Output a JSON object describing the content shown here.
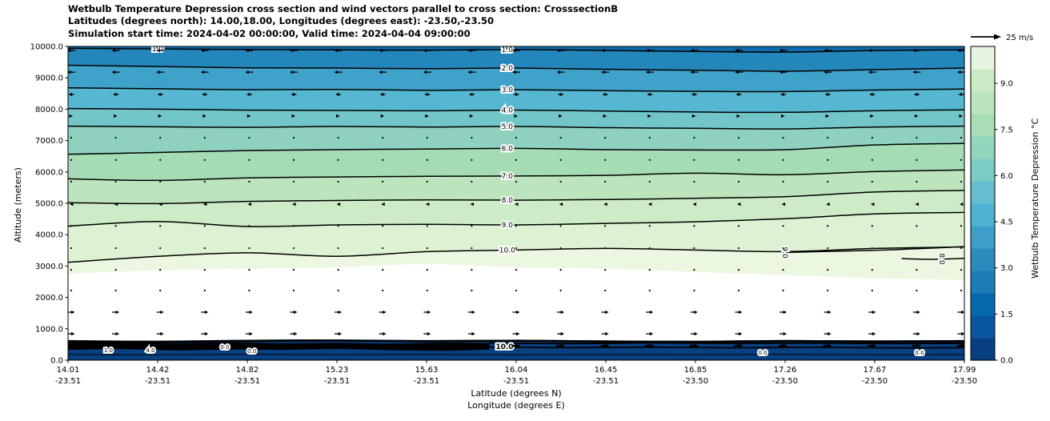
{
  "figure": {
    "title_line1": "Wetbulb Temperature Depression cross section and wind vectors parallel to cross section: CrosssectionB",
    "title_line2": "Latitudes (degrees north): 14.00,18.00, Longitudes (degrees east): -23.50,-23.50",
    "title_line3": "Simulation start time: 2024-04-02 00:00:00, Valid time: 2024-04-04 09:00:00"
  },
  "chart_data": {
    "type": "heatmap",
    "variant": "filled-contour vertical cross section with wind vectors (quiver)",
    "title": "Wetbulb Temperature Depression cross section and wind vectors parallel to cross section: CrosssectionB",
    "xlabel_line1": "Latitude (degrees N)",
    "xlabel_line2": "Longitude (degrees E)",
    "ylabel": "Altitude (meters)",
    "ylim": [
      0,
      10000
    ],
    "y_ticks": [
      "0.0",
      "1000.0",
      "2000.0",
      "3000.0",
      "4000.0",
      "5000.0",
      "6000.0",
      "7000.0",
      "8000.0",
      "9000.0",
      "10000.0"
    ],
    "x_ticks": [
      {
        "lat": "14.01",
        "lon": "-23.51"
      },
      {
        "lat": "14.42",
        "lon": "-23.51"
      },
      {
        "lat": "14.82",
        "lon": "-23.51"
      },
      {
        "lat": "15.23",
        "lon": "-23.51"
      },
      {
        "lat": "15.63",
        "lon": "-23.51"
      },
      {
        "lat": "16.04",
        "lon": "-23.51"
      },
      {
        "lat": "16.45",
        "lon": "-23.51"
      },
      {
        "lat": "16.85",
        "lon": "-23.50"
      },
      {
        "lat": "17.26",
        "lon": "-23.50"
      },
      {
        "lat": "17.67",
        "lon": "-23.50"
      },
      {
        "lat": "17.99",
        "lon": "-23.50"
      }
    ],
    "contour_label_fraction": 0.49,
    "contours": {
      "x_fractions": [
        0,
        0.1,
        0.2,
        0.3,
        0.4,
        0.5,
        0.6,
        0.7,
        0.8,
        0.9,
        1.0
      ],
      "levels": [
        {
          "label": "1.0",
          "alt": [
            9940,
            9920,
            9900,
            9890,
            9880,
            9900,
            9870,
            9840,
            9820,
            9870,
            9890
          ],
          "extra_label_at": 0.1
        },
        {
          "label": "2.0",
          "alt": [
            9400,
            9360,
            9320,
            9310,
            9290,
            9310,
            9270,
            9240,
            9210,
            9260,
            9310
          ]
        },
        {
          "label": "3.0",
          "alt": [
            8680,
            8650,
            8620,
            8630,
            8600,
            8620,
            8590,
            8570,
            8560,
            8610,
            8640
          ]
        },
        {
          "label": "4.0",
          "alt": [
            8020,
            8000,
            7970,
            7960,
            7950,
            7970,
            7940,
            7910,
            7900,
            7950,
            7980
          ]
        },
        {
          "label": "5.0",
          "alt": [
            7460,
            7440,
            7420,
            7450,
            7430,
            7450,
            7410,
            7390,
            7370,
            7430,
            7460
          ]
        },
        {
          "label": "6.0",
          "alt": [
            6560,
            6620,
            6680,
            6710,
            6730,
            6750,
            6710,
            6700,
            6710,
            6860,
            6910
          ]
        },
        {
          "label": "7.0",
          "alt": [
            5780,
            5730,
            5810,
            5840,
            5860,
            5870,
            5890,
            5960,
            5910,
            6010,
            6060
          ]
        },
        {
          "label": "8.0",
          "alt": [
            5020,
            4990,
            5060,
            5090,
            5110,
            5100,
            5120,
            5160,
            5210,
            5360,
            5410
          ]
        },
        {
          "label": "9.0",
          "alt": [
            4270,
            4420,
            4260,
            4310,
            4330,
            4310,
            4360,
            4410,
            4510,
            4660,
            4710
          ]
        },
        {
          "label": "10.0",
          "alt": [
            3120,
            3310,
            3420,
            3310,
            3460,
            3510,
            3560,
            3510,
            3460,
            3560,
            3610
          ]
        }
      ]
    },
    "fill_boundary_alt": [
      2760,
      2860,
      2910,
      2960,
      3060,
      2960,
      2910,
      2810,
      2710,
      2610,
      2560
    ],
    "band_colors": [
      "#0e6bad",
      "#2487bb",
      "#3fa2ca",
      "#55b7d1",
      "#72c6c9",
      "#8fd1bf",
      "#a5dcb6",
      "#bce4bd",
      "#cdebc6",
      "#ddf1d3",
      "#ecf7e2"
    ],
    "extra_contours": [
      {
        "label": "9.0",
        "x": [
          0.8,
          0.85,
          0.9,
          0.95,
          1.0
        ],
        "alt": [
          3430,
          3470,
          3500,
          3555,
          3620
        ],
        "label_at": 0.8,
        "rot": 90
      },
      {
        "label": "8.0",
        "x": [
          0.93,
          0.96,
          1.0
        ],
        "alt": [
          3240,
          3215,
          3245
        ],
        "label_at": 0.975,
        "rot": 90
      }
    ],
    "surface_layer": {
      "fill_color": "#084081",
      "top_alt": [
        640,
        620,
        650,
        660,
        640,
        650,
        630,
        620,
        640,
        630,
        640
      ],
      "black_band_alt": [
        600,
        585,
        615,
        625,
        605,
        620,
        595,
        585,
        610,
        595,
        605
      ],
      "blob": {
        "x": [
          0,
          0.06,
          0.12,
          0.18,
          0.24,
          0.3,
          0.36,
          0.42,
          0.47
        ],
        "top": [
          560,
          575,
          545,
          570,
          540,
          555,
          530,
          560,
          545
        ],
        "bottom": [
          330,
          350,
          310,
          340,
          330,
          355,
          320,
          300,
          340
        ]
      },
      "lines_right": [
        {
          "x": [
            0.47,
            0.56,
            0.65,
            0.74,
            0.83,
            0.92,
            1.0
          ],
          "alt": [
            545,
            530,
            550,
            535,
            545,
            530,
            540
          ]
        },
        {
          "x": [
            0.47,
            0.56,
            0.65,
            0.74,
            0.83,
            0.92,
            1.0
          ],
          "alt": [
            420,
            400,
            415,
            395,
            410,
            390,
            400
          ]
        }
      ],
      "inner_lines": [
        {
          "x": [
            0,
            0.1,
            0.2,
            0.3,
            0.4,
            0.5,
            0.6,
            0.7,
            0.8,
            0.9,
            1.0
          ],
          "alt": [
            180,
            170,
            190,
            175,
            185,
            170,
            180,
            175,
            185,
            170,
            180
          ]
        }
      ],
      "labels": [
        {
          "x": 0.045,
          "alt": 330,
          "t": "1.0"
        },
        {
          "x": 0.092,
          "alt": 330,
          "t": "4.0"
        },
        {
          "x": 0.175,
          "alt": 430,
          "t": "0.0"
        },
        {
          "x": 0.205,
          "alt": 300,
          "t": "0.0"
        },
        {
          "x": 0.487,
          "alt": 430,
          "t": "10.0",
          "bold": true
        },
        {
          "x": 0.775,
          "alt": 260,
          "t": "0.0"
        },
        {
          "x": 0.95,
          "alt": 260,
          "t": "0.0"
        }
      ]
    },
    "wind": {
      "ref_label": "25 m/s",
      "columns": 21,
      "rows": [
        {
          "alt": 9870,
          "dir": "L",
          "len": 10
        },
        {
          "alt": 9180,
          "dir": "L",
          "len": 10
        },
        {
          "alt": 8470,
          "dir": "L",
          "len": 7
        },
        {
          "alt": 7780,
          "dir": "R",
          "len": 4
        },
        {
          "alt": 7090,
          "dir": "dot",
          "len": 0
        },
        {
          "alt": 6380,
          "dir": "dot",
          "len": 0
        },
        {
          "alt": 5690,
          "dir": "dot",
          "len": 0
        },
        {
          "alt": 4970,
          "dir": "L",
          "len": 4
        },
        {
          "alt": 4280,
          "dir": "dot",
          "len": 0
        },
        {
          "alt": 3570,
          "dir": "dot",
          "len": 0
        },
        {
          "alt": 2880,
          "dir": "dot",
          "len": 0
        },
        {
          "alt": 2220,
          "dir": "dot",
          "len": 0
        },
        {
          "alt": 1530,
          "dir": "R",
          "len": 9
        },
        {
          "alt": 840,
          "dir": "R",
          "len": 9
        },
        {
          "alt": 460,
          "dir": "R",
          "len": 11,
          "bold": true
        }
      ]
    },
    "colorbar": {
      "label": "Wetbulb Temperature Depression °C",
      "ticks": [
        "0.0",
        "1.5",
        "3.0",
        "4.5",
        "6.0",
        "7.5",
        "9.0"
      ],
      "tick_values": [
        0,
        1.5,
        3,
        4.5,
        6,
        7.5,
        9
      ],
      "vmin": 0,
      "vmax": 10.2,
      "colors": [
        "#084081",
        "#0a56a0",
        "#0868ac",
        "#1d7eb7",
        "#2b8cbe",
        "#3f9fc8",
        "#4eb3d3",
        "#64bed0",
        "#7bccc4",
        "#92d5bd",
        "#a8ddb5",
        "#bce4bd",
        "#ccebc5",
        "#e6f5df"
      ]
    }
  }
}
